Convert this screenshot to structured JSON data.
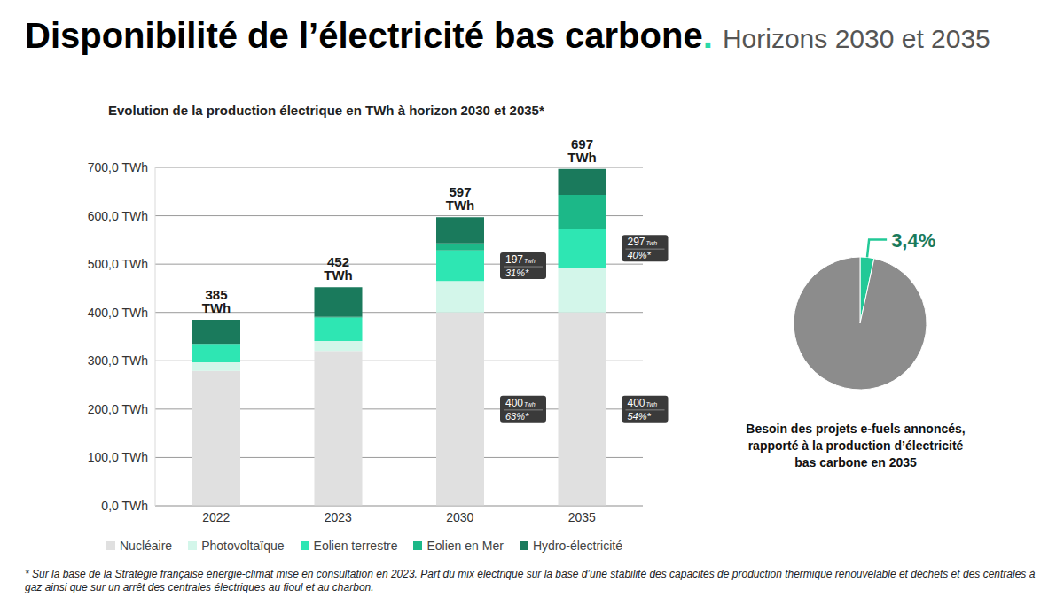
{
  "title": "Disponibilité de l’électricité bas carbone.",
  "subtitle": "Horizons 2030 et 2035",
  "footnote": "* Sur la base de la Stratégie française énergie-climat mise en consultation en 2023. Part du mix électrique sur la base d’une stabilité des capacités de production thermique renouvelable et déchets et des centrales à gaz ainsi que sur un arrêt des centrales électriques au fioul et au charbon.",
  "chart_data": [
    {
      "type": "bar",
      "title": "Evolution de la production électrique en TWh à horizon 2030 et 2035*",
      "stacked": true,
      "grid": true,
      "legend": "bottom",
      "categories": [
        "2022",
        "2023",
        "2030",
        "2035"
      ],
      "series": [
        {
          "name": "Nucléaire",
          "color": "#e0e0e0",
          "values": [
            279,
            320,
            400,
            400
          ]
        },
        {
          "name": "Photovoltaïque",
          "color": "#d3f6ea",
          "values": [
            18,
            21,
            65,
            93
          ]
        },
        {
          "name": "Eolien terrestre",
          "color": "#2ee6b3",
          "values": [
            38,
            48,
            63,
            80
          ]
        },
        {
          "name": "Eolien en Mer",
          "color": "#1cb888",
          "values": [
            0,
            2,
            15,
            70
          ]
        },
        {
          "name": "Hydro-électricité",
          "color": "#1a7a5c",
          "values": [
            50,
            61,
            54,
            54
          ]
        }
      ],
      "total_labels": [
        "385 TWh",
        "452 TWh",
        "597 TWh",
        "697 TWh"
      ],
      "annotations": [
        {
          "category": "2030",
          "anchor": "Eolien terrestre",
          "value": 197,
          "unit": "Twh",
          "share": "31%*"
        },
        {
          "category": "2035",
          "anchor": "Eolien terrestre",
          "value": 297,
          "unit": "Twh",
          "share": "40%*"
        },
        {
          "category": "2030",
          "anchor": "Nucléaire",
          "value": 400,
          "unit": "Twh",
          "share": "63%*"
        },
        {
          "category": "2035",
          "anchor": "Nucléaire",
          "value": 400,
          "unit": "Twh",
          "share": "54%*"
        }
      ],
      "ylim": [
        0,
        700
      ],
      "yticks": [
        {
          "value": 0,
          "label": "0,0 TWh"
        },
        {
          "value": 100,
          "label": "100,0 TWh"
        },
        {
          "value": 200,
          "label": "200,0 TWh"
        },
        {
          "value": 300,
          "label": "300,0 TWh"
        },
        {
          "value": 400,
          "label": "400,0 TWh"
        },
        {
          "value": 500,
          "label": "500,0 TWh"
        },
        {
          "value": 600,
          "label": "600,0 TWh"
        },
        {
          "value": 700,
          "label": "700,0 TWh"
        }
      ]
    },
    {
      "type": "pie",
      "values": [
        3.4,
        96.6
      ],
      "value_labels": [
        "3,4%",
        null
      ],
      "colors": [
        "#22c997",
        "#8c8c8c"
      ],
      "caption": [
        "Besoin des projets e-fuels annoncés,",
        "rapporté à la production d’électricité",
        "bas carbone en 2035"
      ]
    }
  ]
}
